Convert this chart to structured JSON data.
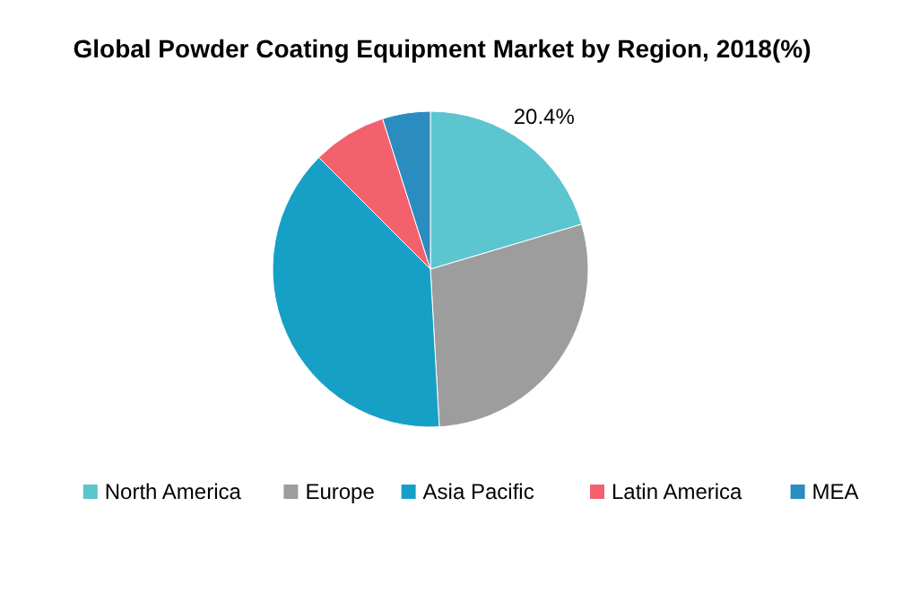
{
  "chart_data": {
    "type": "pie",
    "title": "Global Powder Coating Equipment Market by Region, 2018(%)",
    "categories": [
      "North America",
      "Europe",
      "Asia Pacific",
      "Latin America",
      "MEA"
    ],
    "values": [
      20.4,
      28.7,
      38.4,
      7.6,
      4.9
    ],
    "colors": [
      "#5bc5d0",
      "#9d9d9d",
      "#16a0c6",
      "#f2616d",
      "#2b8cc0"
    ],
    "value_labels": [
      "20.4%",
      null,
      null,
      null,
      null
    ],
    "legend": "bottom"
  }
}
